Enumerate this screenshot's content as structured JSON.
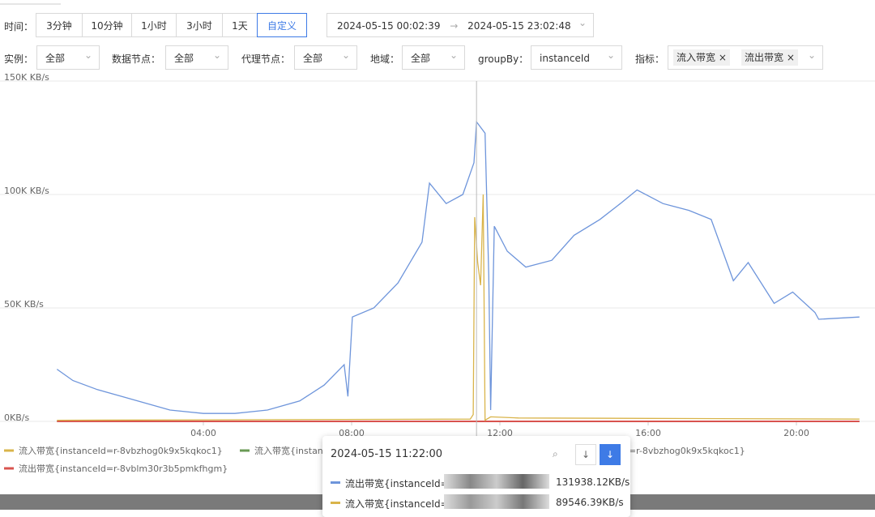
{
  "filters": {
    "time_label": "时间：",
    "ranges": [
      "3分钟",
      "10分钟",
      "1小时",
      "3小时",
      "1天",
      "自定义"
    ],
    "start": "2024-05-15 00:02:39",
    "arrow": "→",
    "end": "2024-05-15 23:02:48",
    "instance_label": "实例：",
    "instance": "全部",
    "data_node_label": "数据节点：",
    "data_node": "全部",
    "proxy_node_label": "代理节点：",
    "proxy_node": "全部",
    "region_label": "地域：",
    "region": "全部",
    "groupby_label": "groupBy：",
    "groupby": "instanceId",
    "metric_label": "指标：",
    "metrics": [
      "流入带宽",
      "流出带宽"
    ]
  },
  "chart_data": {
    "type": "line",
    "xlim": [
      0,
      22.15
    ],
    "ylim": [
      0,
      150000
    ],
    "xticks": [
      {
        "value": 4,
        "label": "04:00"
      },
      {
        "value": 8,
        "label": "08:00"
      },
      {
        "value": 12,
        "label": "12:00"
      },
      {
        "value": 16,
        "label": "16:00"
      },
      {
        "value": 20,
        "label": "20:00"
      }
    ],
    "yticks": [
      {
        "value": 0,
        "label": "0KB/s"
      },
      {
        "value": 50000,
        "label": "50K KB/s"
      },
      {
        "value": 100000,
        "label": "100K KB/s"
      },
      {
        "value": 150000,
        "label": "150K KB/s"
      }
    ],
    "grid": true,
    "series": [
      {
        "name": "流入带宽{instanceId=r-8vbzhog0k9x5kqkoc1}",
        "color": "#d9b44a",
        "x": [
          0.05,
          11.2,
          11.28,
          11.32,
          11.4,
          11.48,
          11.55,
          11.6,
          11.75,
          12.5,
          21.7
        ],
        "values": [
          500,
          1000,
          3000,
          90000,
          70000,
          60000,
          100000,
          500,
          2000,
          1500,
          1000
        ]
      },
      {
        "name": "流入带宽{instanceId=r-8vblm30r3b5pmkfhgm}",
        "color": "#6a9a55",
        "x": [
          0.05,
          21.7
        ],
        "values": [
          0,
          0
        ]
      },
      {
        "name": "流出带宽{instanceId=r-8vbzhog0k9x5kqkoc1}",
        "color": "#6e95db",
        "x": [
          0.05,
          0.48,
          1.14,
          1.8,
          2.45,
          3.1,
          4.0,
          4.85,
          5.73,
          6.6,
          7.26,
          7.8,
          7.9,
          8.02,
          8.6,
          9.25,
          9.9,
          10.1,
          10.55,
          11.0,
          11.3,
          11.37,
          11.6,
          11.7,
          11.75,
          11.85,
          12.2,
          12.7,
          13.4,
          14.0,
          14.7,
          15.25,
          15.7,
          16.4,
          17.1,
          17.7,
          18.3,
          18.7,
          19.4,
          19.9,
          20.5,
          20.6,
          21.7
        ],
        "values": [
          23000,
          18000,
          14000,
          11000,
          8000,
          5000,
          3500,
          3500,
          5000,
          9000,
          16000,
          25000,
          11000,
          46000,
          50000,
          61000,
          79000,
          105000,
          96000,
          100000,
          114000,
          132000,
          127000,
          64000,
          5000,
          86000,
          75000,
          68000,
          71000,
          82000,
          89000,
          96000,
          102000,
          96000,
          93000,
          89000,
          62000,
          70000,
          52000,
          57000,
          48000,
          45000,
          46000
        ]
      },
      {
        "name": "流出带宽{instanceId=r-8vblm30r3b5pmkfhgm}",
        "color": "#d9534f",
        "x": [
          0.05,
          21.7
        ],
        "values": [
          0,
          0
        ]
      }
    ],
    "crosshair": 11.37
  },
  "tooltip": {
    "time": "2024-05-15 11:22:00",
    "rows": [
      {
        "name": "流出带宽{instanceId=r-",
        "value": "131938.12KB/s"
      },
      {
        "name": "流入带宽{instanceId=r-",
        "value": "89546.39KB/s"
      }
    ]
  }
}
